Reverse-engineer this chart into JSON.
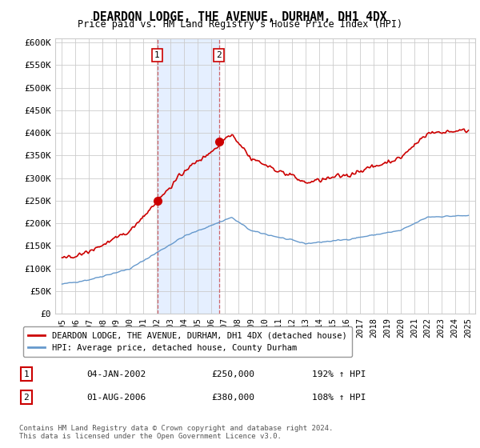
{
  "title": "DEARDON LODGE, THE AVENUE, DURHAM, DH1 4DX",
  "subtitle": "Price paid vs. HM Land Registry's House Price Index (HPI)",
  "ylabel_ticks": [
    "£0",
    "£50K",
    "£100K",
    "£150K",
    "£200K",
    "£250K",
    "£300K",
    "£350K",
    "£400K",
    "£450K",
    "£500K",
    "£550K",
    "£600K"
  ],
  "ytick_vals": [
    0,
    50000,
    100000,
    150000,
    200000,
    250000,
    300000,
    350000,
    400000,
    450000,
    500000,
    550000,
    600000
  ],
  "ylim": [
    0,
    610000
  ],
  "xlim_start": 1994.5,
  "xlim_end": 2025.5,
  "sale1_date": 2002.03,
  "sale1_price": 250000,
  "sale1_label": "1",
  "sale2_date": 2006.58,
  "sale2_price": 380000,
  "sale2_label": "2",
  "shading1_start": 2002.03,
  "shading1_end": 2006.58,
  "property_line_color": "#cc0000",
  "hpi_line_color": "#6699cc",
  "legend_property": "DEARDON LODGE, THE AVENUE, DURHAM, DH1 4DX (detached house)",
  "legend_hpi": "HPI: Average price, detached house, County Durham",
  "annotation1_date": "04-JAN-2002",
  "annotation1_price": "£250,000",
  "annotation1_pct": "192% ↑ HPI",
  "annotation2_date": "01-AUG-2006",
  "annotation2_price": "£380,000",
  "annotation2_pct": "108% ↑ HPI",
  "footer": "Contains HM Land Registry data © Crown copyright and database right 2024.\nThis data is licensed under the Open Government Licence v3.0.",
  "background_color": "#ffffff",
  "grid_color": "#cccccc"
}
